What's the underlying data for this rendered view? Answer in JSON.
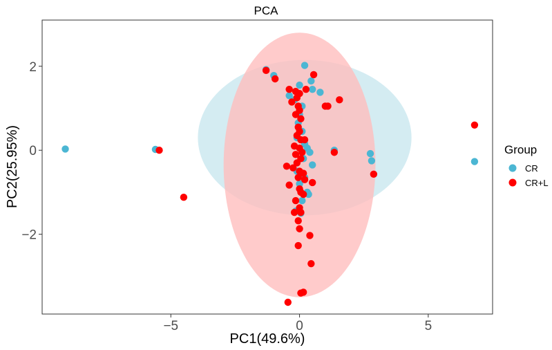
{
  "chart_data": {
    "type": "scatter",
    "title": "PCA",
    "xlabel": "PC1(49.6%)",
    "ylabel": "PC2(25.95%)",
    "xlim": [
      -10,
      7.5
    ],
    "ylim": [
      -3.9,
      3.1
    ],
    "xticks": [
      -5,
      0,
      5
    ],
    "yticks": [
      -2,
      0,
      2
    ],
    "xtick_labels": [
      "−5",
      "0",
      "5"
    ],
    "ytick_labels": [
      "−2",
      "0",
      "2"
    ],
    "grid": false,
    "legend": {
      "title": "Group",
      "position": "right",
      "entries": [
        "CR",
        "CR+L"
      ]
    },
    "series": [
      {
        "name": "CR",
        "color": "#4BB6D3",
        "ellipse": {
          "color": "#CDE9F0",
          "center": [
            0.2,
            0.3
          ],
          "rx": 4.15,
          "ry": 1.85
        },
        "points": [
          [
            -9.1,
            0.03
          ],
          [
            -5.6,
            0.02
          ],
          [
            -1.3,
            1.92
          ],
          [
            -1.0,
            1.78
          ],
          [
            0.2,
            2.02
          ],
          [
            0.45,
            1.65
          ],
          [
            0.8,
            1.38
          ],
          [
            0.5,
            1.45
          ],
          [
            0.0,
            1.55
          ],
          [
            -0.4,
            1.3
          ],
          [
            -0.2,
            1.2
          ],
          [
            0.1,
            1.05
          ],
          [
            0.0,
            0.85
          ],
          [
            -0.05,
            0.65
          ],
          [
            0.1,
            0.45
          ],
          [
            -0.1,
            0.3
          ],
          [
            0.2,
            0.15
          ],
          [
            0.3,
            0.05
          ],
          [
            0.4,
            -0.05
          ],
          [
            0.15,
            -0.2
          ],
          [
            0.5,
            -0.35
          ],
          [
            -0.1,
            -0.5
          ],
          [
            0.2,
            -0.65
          ],
          [
            0.0,
            -0.8
          ],
          [
            0.3,
            -1.0
          ],
          [
            0.35,
            -1.05
          ],
          [
            0.1,
            -1.2
          ],
          [
            0.05,
            -1.5
          ],
          [
            -0.15,
            -1.45
          ],
          [
            1.35,
            0.0
          ],
          [
            2.75,
            -0.08
          ],
          [
            2.8,
            -0.25
          ],
          [
            6.8,
            -0.27
          ]
        ]
      },
      {
        "name": "CR+L",
        "color": "#FF0000",
        "ellipse": {
          "color": "#FFBCBC",
          "center": [
            0.0,
            -0.35
          ],
          "rx": 2.95,
          "ry": 3.15
        },
        "points": [
          [
            -5.45,
            0.0
          ],
          [
            -4.5,
            -1.12
          ],
          [
            -1.3,
            1.9
          ],
          [
            -0.95,
            1.7
          ],
          [
            0.55,
            1.8
          ],
          [
            0.25,
            1.45
          ],
          [
            1.55,
            1.2
          ],
          [
            1.0,
            1.05
          ],
          [
            1.1,
            1.05
          ],
          [
            -0.4,
            1.45
          ],
          [
            -0.15,
            1.4
          ],
          [
            0.0,
            1.35
          ],
          [
            -0.1,
            1.25
          ],
          [
            -0.3,
            1.15
          ],
          [
            -0.05,
            1.05
          ],
          [
            0.0,
            0.95
          ],
          [
            -0.15,
            0.85
          ],
          [
            0.05,
            0.75
          ],
          [
            -0.05,
            0.55
          ],
          [
            0.0,
            0.45
          ],
          [
            -0.1,
            0.35
          ],
          [
            0.05,
            0.25
          ],
          [
            0.2,
            0.25
          ],
          [
            -0.2,
            0.1
          ],
          [
            0.0,
            0.05
          ],
          [
            0.1,
            -0.05
          ],
          [
            -0.15,
            -0.1
          ],
          [
            0.05,
            -0.2
          ],
          [
            -0.1,
            -0.3
          ],
          [
            -0.5,
            -0.38
          ],
          [
            -0.25,
            -0.42
          ],
          [
            0.0,
            -0.5
          ],
          [
            0.15,
            -0.55
          ],
          [
            -0.05,
            -0.65
          ],
          [
            0.2,
            -0.7
          ],
          [
            -0.4,
            -0.83
          ],
          [
            0.0,
            -0.92
          ],
          [
            0.05,
            -1.0
          ],
          [
            0.15,
            -1.05
          ],
          [
            0.5,
            -0.77
          ],
          [
            1.35,
            -0.05
          ],
          [
            2.88,
            -0.57
          ],
          [
            6.8,
            0.6
          ],
          [
            -0.15,
            -1.2
          ],
          [
            0.0,
            -1.37
          ],
          [
            0.05,
            -1.48
          ],
          [
            -0.2,
            -1.48
          ],
          [
            -0.05,
            -1.68
          ],
          [
            0.0,
            -1.87
          ],
          [
            0.4,
            -2.03
          ],
          [
            -0.05,
            -2.27
          ],
          [
            0.45,
            -2.7
          ],
          [
            0.05,
            -3.4
          ],
          [
            0.15,
            -3.38
          ],
          [
            -0.45,
            -3.62
          ]
        ]
      }
    ]
  }
}
